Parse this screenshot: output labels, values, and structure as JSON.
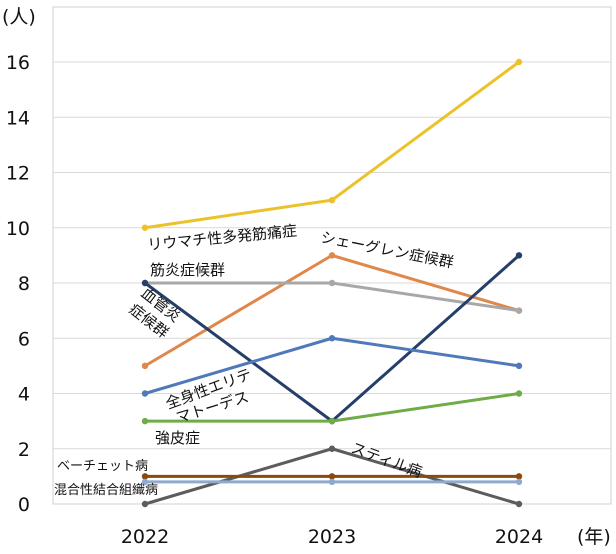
{
  "chart_data": {
    "type": "line",
    "title": "",
    "xlabel": "",
    "ylabel": "",
    "y_unit": "(人)",
    "x_unit": "(年)",
    "categories": [
      "2022",
      "2023",
      "2024"
    ],
    "ylim": [
      0,
      16
    ],
    "yticks": [
      0,
      2,
      4,
      6,
      8,
      10,
      12,
      14,
      16
    ],
    "grid": "horizontal",
    "legend": "none",
    "series": [
      {
        "name": "リウマチ性多発筋痛症",
        "values": [
          10,
          11,
          16
        ],
        "color": "#ecc22a"
      },
      {
        "name": "シェーグレン症候群",
        "values": [
          5,
          9,
          7
        ],
        "color": "#e0874a"
      },
      {
        "name": "筋炎症候群",
        "values": [
          8,
          8,
          7
        ],
        "color": "#a8a8a8"
      },
      {
        "name": "血管炎症候群",
        "values": [
          8,
          3,
          9
        ],
        "color": "#263f6a"
      },
      {
        "name": "全身性エリテマトーデス",
        "values": [
          4,
          6,
          5
        ],
        "color": "#4f79b8"
      },
      {
        "name": "強皮症",
        "values": [
          3,
          3,
          4
        ],
        "color": "#6fab46"
      },
      {
        "name": "スティル病",
        "values": [
          0,
          2,
          0
        ],
        "color": "#5c5c5c"
      },
      {
        "name": "ベーチェット病",
        "values": [
          1,
          1,
          1
        ],
        "color": "#8a4a0f"
      },
      {
        "name": "混合性結合組織病",
        "values": [
          0.8,
          0.8,
          0.8
        ],
        "color": "#8fa9cf"
      }
    ]
  }
}
